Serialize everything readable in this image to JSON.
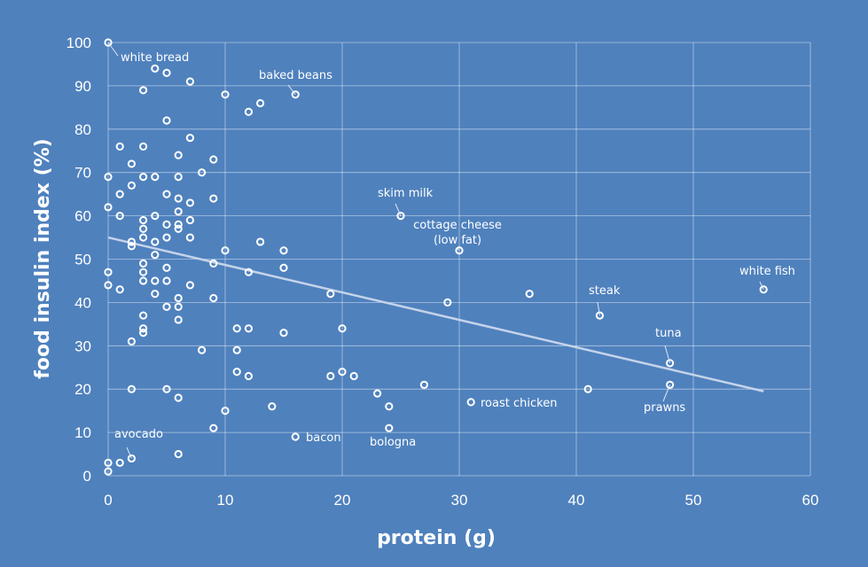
{
  "chart_data": {
    "type": "scatter",
    "title": "",
    "xlabel": "protein (g)",
    "ylabel": "food insulin index (%)",
    "xlim": [
      0,
      60
    ],
    "ylim": [
      0,
      100
    ],
    "x_ticks": [
      0,
      10,
      20,
      30,
      40,
      50,
      60
    ],
    "y_ticks": [
      0,
      10,
      20,
      30,
      40,
      50,
      60,
      70,
      80,
      90,
      100
    ],
    "grid": true,
    "legend": "none",
    "trendline": {
      "type": "linear",
      "from": [
        0,
        55
      ],
      "to": [
        56,
        19.5
      ]
    },
    "points": [
      {
        "x": 0,
        "y": 100,
        "label": "white bread"
      },
      {
        "x": 0,
        "y": 69
      },
      {
        "x": 0,
        "y": 62
      },
      {
        "x": 0,
        "y": 47
      },
      {
        "x": 0,
        "y": 44
      },
      {
        "x": 0,
        "y": 3
      },
      {
        "x": 0,
        "y": 1
      },
      {
        "x": 1,
        "y": 76
      },
      {
        "x": 1,
        "y": 65
      },
      {
        "x": 1,
        "y": 60
      },
      {
        "x": 1,
        "y": 43
      },
      {
        "x": 1,
        "y": 3
      },
      {
        "x": 2,
        "y": 72
      },
      {
        "x": 2,
        "y": 67
      },
      {
        "x": 2,
        "y": 54
      },
      {
        "x": 2,
        "y": 53
      },
      {
        "x": 2,
        "y": 31
      },
      {
        "x": 2,
        "y": 20
      },
      {
        "x": 2,
        "y": 4,
        "label": "avocado"
      },
      {
        "x": 3,
        "y": 89
      },
      {
        "x": 3,
        "y": 76
      },
      {
        "x": 3,
        "y": 69
      },
      {
        "x": 3,
        "y": 59
      },
      {
        "x": 3,
        "y": 57
      },
      {
        "x": 3,
        "y": 55
      },
      {
        "x": 3,
        "y": 49
      },
      {
        "x": 3,
        "y": 47
      },
      {
        "x": 3,
        "y": 45
      },
      {
        "x": 3,
        "y": 37
      },
      {
        "x": 3,
        "y": 34
      },
      {
        "x": 3,
        "y": 33
      },
      {
        "x": 4,
        "y": 94
      },
      {
        "x": 4,
        "y": 69
      },
      {
        "x": 4,
        "y": 60
      },
      {
        "x": 4,
        "y": 54
      },
      {
        "x": 4,
        "y": 51
      },
      {
        "x": 4,
        "y": 45
      },
      {
        "x": 4,
        "y": 42
      },
      {
        "x": 5,
        "y": 93
      },
      {
        "x": 5,
        "y": 82
      },
      {
        "x": 5,
        "y": 65
      },
      {
        "x": 5,
        "y": 58
      },
      {
        "x": 5,
        "y": 55
      },
      {
        "x": 5,
        "y": 48
      },
      {
        "x": 5,
        "y": 45
      },
      {
        "x": 5,
        "y": 39
      },
      {
        "x": 5,
        "y": 20
      },
      {
        "x": 6,
        "y": 74
      },
      {
        "x": 6,
        "y": 69
      },
      {
        "x": 6,
        "y": 64
      },
      {
        "x": 6,
        "y": 61
      },
      {
        "x": 6,
        "y": 58
      },
      {
        "x": 6,
        "y": 57
      },
      {
        "x": 6,
        "y": 41
      },
      {
        "x": 6,
        "y": 39
      },
      {
        "x": 6,
        "y": 36
      },
      {
        "x": 6,
        "y": 18
      },
      {
        "x": 6,
        "y": 5
      },
      {
        "x": 7,
        "y": 91
      },
      {
        "x": 7,
        "y": 78
      },
      {
        "x": 7,
        "y": 63
      },
      {
        "x": 7,
        "y": 59
      },
      {
        "x": 7,
        "y": 55
      },
      {
        "x": 7,
        "y": 44
      },
      {
        "x": 8,
        "y": 70
      },
      {
        "x": 8,
        "y": 29
      },
      {
        "x": 9,
        "y": 73
      },
      {
        "x": 9,
        "y": 64
      },
      {
        "x": 9,
        "y": 49
      },
      {
        "x": 9,
        "y": 41
      },
      {
        "x": 9,
        "y": 11
      },
      {
        "x": 10,
        "y": 88
      },
      {
        "x": 10,
        "y": 52
      },
      {
        "x": 10,
        "y": 15
      },
      {
        "x": 11,
        "y": 34
      },
      {
        "x": 11,
        "y": 29
      },
      {
        "x": 11,
        "y": 24
      },
      {
        "x": 12,
        "y": 84
      },
      {
        "x": 12,
        "y": 47
      },
      {
        "x": 12,
        "y": 34
      },
      {
        "x": 12,
        "y": 23
      },
      {
        "x": 13,
        "y": 86
      },
      {
        "x": 13,
        "y": 54
      },
      {
        "x": 14,
        "y": 16
      },
      {
        "x": 15,
        "y": 52
      },
      {
        "x": 15,
        "y": 48
      },
      {
        "x": 15,
        "y": 33
      },
      {
        "x": 16,
        "y": 88,
        "label": "baked beans"
      },
      {
        "x": 16,
        "y": 9,
        "label": "bacon"
      },
      {
        "x": 19,
        "y": 42
      },
      {
        "x": 19,
        "y": 23
      },
      {
        "x": 20,
        "y": 34
      },
      {
        "x": 20,
        "y": 24
      },
      {
        "x": 21,
        "y": 23
      },
      {
        "x": 23,
        "y": 19
      },
      {
        "x": 24,
        "y": 16
      },
      {
        "x": 24,
        "y": 11,
        "label": "bologna"
      },
      {
        "x": 25,
        "y": 60,
        "label": "skim milk"
      },
      {
        "x": 27,
        "y": 21
      },
      {
        "x": 29,
        "y": 40
      },
      {
        "x": 30,
        "y": 52,
        "label": "cottage cheese (low fat)"
      },
      {
        "x": 31,
        "y": 17,
        "label": "roast chicken"
      },
      {
        "x": 36,
        "y": 42
      },
      {
        "x": 41,
        "y": 20
      },
      {
        "x": 42,
        "y": 37,
        "label": "steak"
      },
      {
        "x": 48,
        "y": 26,
        "label": "tuna"
      },
      {
        "x": 48,
        "y": 21,
        "label": "prawns"
      },
      {
        "x": 56,
        "y": 43,
        "label": "white fish"
      }
    ],
    "annotations": [
      {
        "name": "annotation-white-bread",
        "lines": [
          "white bread"
        ],
        "leader_to": [
          0,
          100
        ]
      },
      {
        "name": "annotation-baked-beans",
        "lines": [
          "baked beans"
        ],
        "leader_to": [
          16,
          88
        ]
      },
      {
        "name": "annotation-skim-milk",
        "lines": [
          "skim milk"
        ],
        "leader_to": [
          25,
          60
        ]
      },
      {
        "name": "annotation-cottage-cheese",
        "lines": [
          "cottage cheese",
          "(low fat)"
        ],
        "leader_to": [
          30,
          52
        ]
      },
      {
        "name": "annotation-white-fish",
        "lines": [
          "white fish"
        ],
        "leader_to": [
          56,
          43
        ]
      },
      {
        "name": "annotation-steak",
        "lines": [
          "steak"
        ],
        "leader_to": [
          42,
          37
        ]
      },
      {
        "name": "annotation-tuna",
        "lines": [
          "tuna"
        ],
        "leader_to": [
          48,
          26
        ]
      },
      {
        "name": "annotation-prawns",
        "lines": [
          "prawns"
        ],
        "leader_to": [
          48,
          21
        ]
      },
      {
        "name": "annotation-roast-chicken",
        "lines": [
          "roast chicken"
        ],
        "leader_to": [
          31,
          17
        ]
      },
      {
        "name": "annotation-bacon",
        "lines": [
          "bacon"
        ],
        "leader_to": [
          16,
          9
        ]
      },
      {
        "name": "annotation-bologna",
        "lines": [
          "bologna"
        ],
        "leader_to": [
          24,
          11
        ]
      },
      {
        "name": "annotation-avocado",
        "lines": [
          "avocado"
        ],
        "leader_to": [
          2,
          4
        ]
      }
    ],
    "colors": {
      "background": "#4f81bd",
      "marker": "#ffffff",
      "trendline": "#c5d3ea"
    }
  }
}
